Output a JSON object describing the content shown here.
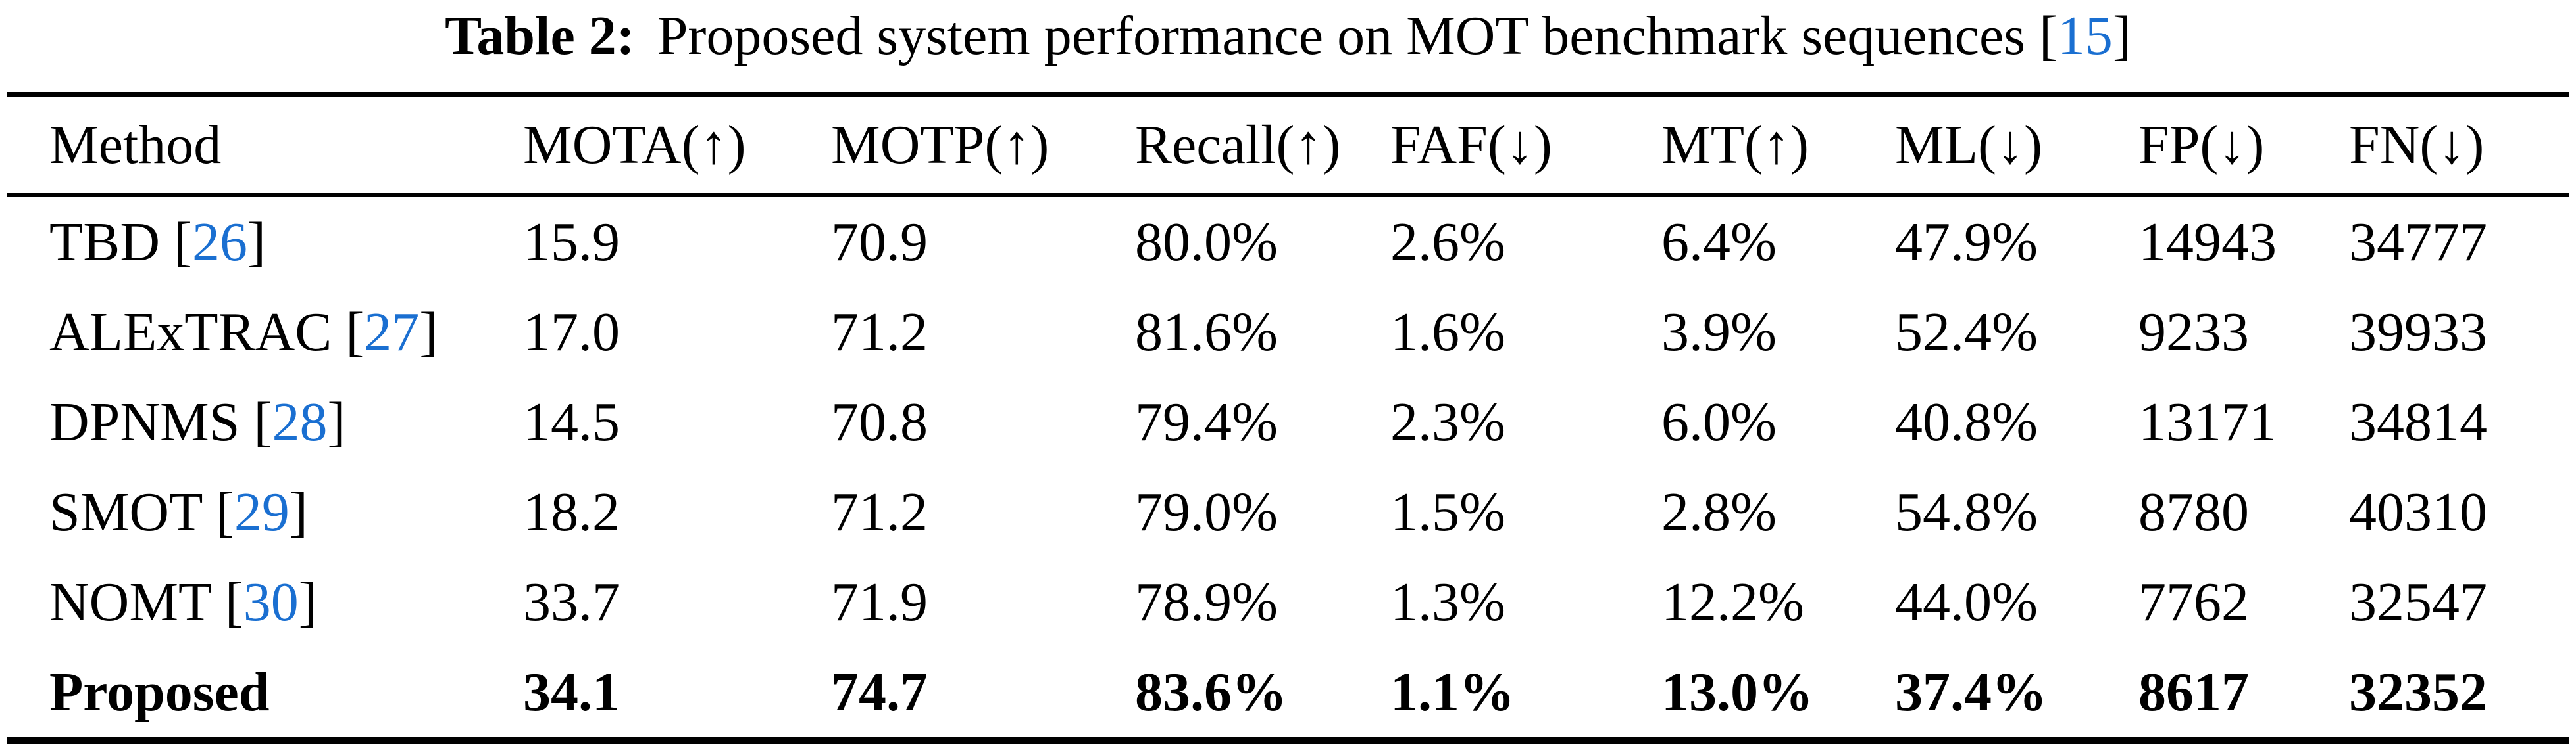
{
  "caption": {
    "label": "Table 2:",
    "text": "Proposed system performance on MOT benchmark sequences",
    "cite_prefix": " [",
    "cite": "15",
    "cite_suffix": "]"
  },
  "table": {
    "columns": [
      "Method",
      "MOTA(↑)",
      "MOTP(↑)",
      "Recall(↑)",
      "FAF(↓)",
      "MT(↑)",
      "ML(↓)",
      "FP(↓)",
      "FN(↓)"
    ],
    "cite_prefix": " [",
    "cite_suffix": "]",
    "rows": [
      {
        "method": "TBD",
        "cite": "26",
        "bold": false,
        "values": [
          "15.9",
          "70.9",
          "80.0%",
          "2.6%",
          "6.4%",
          "47.9%",
          "14943",
          "34777"
        ]
      },
      {
        "method": "ALExTRAC",
        "cite": "27",
        "bold": false,
        "values": [
          "17.0",
          "71.2",
          "81.6%",
          "1.6%",
          "3.9%",
          "52.4%",
          "9233",
          "39933"
        ]
      },
      {
        "method": "DPNMS",
        "cite": "28",
        "bold": false,
        "values": [
          "14.5",
          "70.8",
          "79.4%",
          "2.3%",
          "6.0%",
          "40.8%",
          "13171",
          "34814"
        ]
      },
      {
        "method": "SMOT",
        "cite": "29",
        "bold": false,
        "values": [
          "18.2",
          "71.2",
          "79.0%",
          "1.5%",
          "2.8%",
          "54.8%",
          "8780",
          "40310"
        ]
      },
      {
        "method": "NOMT",
        "cite": "30",
        "bold": false,
        "values": [
          "33.7",
          "71.9",
          "78.9%",
          "1.3%",
          "12.2%",
          "44.0%",
          "7762",
          "32547"
        ]
      },
      {
        "method": "Proposed",
        "cite": null,
        "bold": true,
        "values": [
          "34.1",
          "74.7",
          "83.6%",
          "1.1%",
          "13.0%",
          "37.4%",
          "8617",
          "32352"
        ]
      }
    ]
  },
  "colors": {
    "link_blue": "#1a6fd1",
    "text": "#000000",
    "rule": "#000000"
  },
  "chart_data": {
    "type": "table",
    "title": "Table 2: Proposed system performance on MOT benchmark sequences [15]",
    "columns": [
      "Method",
      "MOTA",
      "MOTP",
      "Recall",
      "FAF",
      "MT",
      "ML",
      "FP",
      "FN"
    ],
    "column_directions": [
      "",
      "higher-better",
      "higher-better",
      "higher-better",
      "lower-better",
      "higher-better",
      "lower-better",
      "lower-better",
      "lower-better"
    ],
    "rows": [
      [
        "TBD [26]",
        15.9,
        70.9,
        "80.0%",
        "2.6%",
        "6.4%",
        "47.9%",
        14943,
        34777
      ],
      [
        "ALExTRAC [27]",
        17.0,
        71.2,
        "81.6%",
        "1.6%",
        "3.9%",
        "52.4%",
        9233,
        39933
      ],
      [
        "DPNMS [28]",
        14.5,
        70.8,
        "79.4%",
        "2.3%",
        "6.0%",
        "40.8%",
        13171,
        34814
      ],
      [
        "SMOT [29]",
        18.2,
        71.2,
        "79.0%",
        "1.5%",
        "2.8%",
        "54.8%",
        8780,
        40310
      ],
      [
        "NOMT [30]",
        33.7,
        71.9,
        "78.9%",
        "1.3%",
        "12.2%",
        "44.0%",
        7762,
        32547
      ],
      [
        "Proposed",
        34.1,
        74.7,
        "83.6%",
        "1.1%",
        "13.0%",
        "37.4%",
        8617,
        32352
      ]
    ],
    "emphasized_row": "Proposed"
  }
}
